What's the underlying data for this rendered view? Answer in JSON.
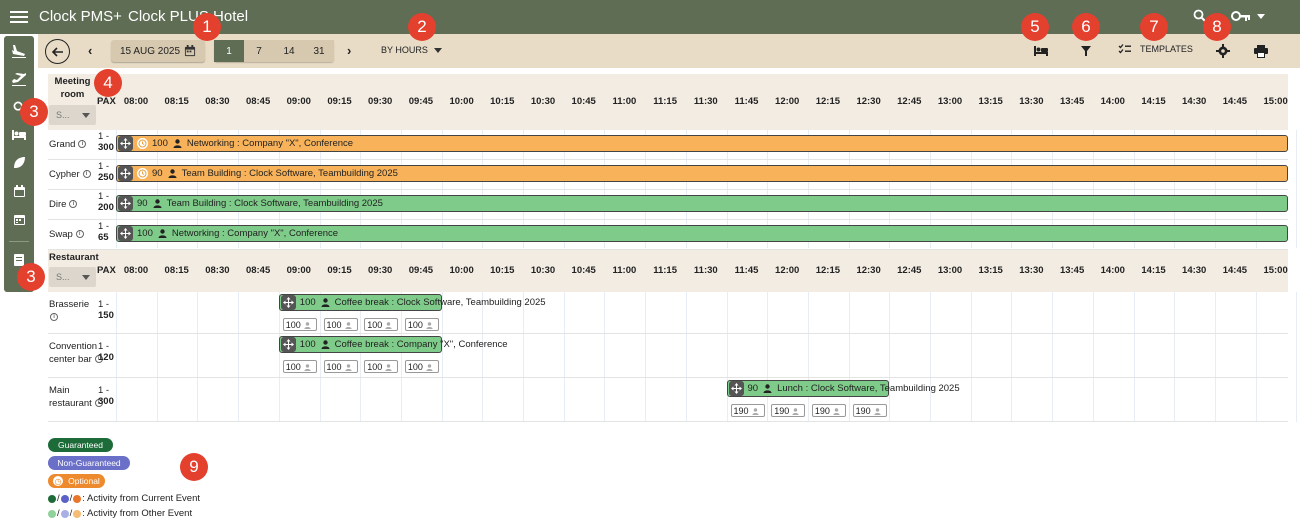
{
  "app": {
    "name": "Clock PMS+",
    "hotel": "Clock PLUS Hotel"
  },
  "toolbar": {
    "date": "15 AUG 2025",
    "ranges": [
      "1",
      "7",
      "14",
      "31"
    ],
    "active_range": "1",
    "mode": "BY HOURS",
    "templates_label": "TEMPLATES"
  },
  "badges": [
    "1",
    "2",
    "3",
    "4",
    "5",
    "6",
    "7",
    "8",
    "9",
    "3"
  ],
  "times": [
    "08:00",
    "08:15",
    "08:30",
    "08:45",
    "09:00",
    "09:15",
    "09:30",
    "09:45",
    "10:00",
    "10:15",
    "10:30",
    "10:45",
    "11:00",
    "11:15",
    "11:30",
    "11:45",
    "12:00",
    "12:15",
    "12:30",
    "12:45",
    "13:00",
    "13:15",
    "13:30",
    "13:45",
    "14:00",
    "14:15",
    "14:30",
    "14:45",
    "15:00"
  ],
  "groups": {
    "meeting": {
      "title_line1": "Meeting",
      "title_line2": "room",
      "pax": "PAX",
      "select_placeholder": "S...",
      "rooms": [
        {
          "name": "Grand",
          "cap_min": "1 -",
          "cap_max": "300",
          "event": {
            "pax": "100",
            "label": "Networking : Company \"X\", Conference",
            "color": "#f8b35a",
            "status": "Optional"
          }
        },
        {
          "name": "Cypher",
          "cap_min": "1 -",
          "cap_max": "250",
          "event": {
            "pax": "90",
            "label": "Team Building : Clock Software, Teambuilding 2025",
            "color": "#f8b35a",
            "status": "Optional"
          }
        },
        {
          "name": "Dire",
          "cap_min": "1 -",
          "cap_max": "200",
          "event": {
            "pax": "90",
            "label": "Team Building : Clock Software, Teambuilding 2025",
            "color": "#7fcc8a",
            "status": "Guaranteed"
          }
        },
        {
          "name": "Swap",
          "cap_min": "1 -",
          "cap_max": "65",
          "event": {
            "pax": "100",
            "label": "Networking : Company \"X\", Conference",
            "color": "#7fcc8a",
            "status": "Guaranteed"
          }
        }
      ]
    },
    "restaurant": {
      "title": "Restaurant",
      "pax": "PAX",
      "select_placeholder": "S...",
      "rooms": [
        {
          "name_line1": "Brasserie",
          "name_line2": "",
          "cap_min": "1 -",
          "cap_max": "150",
          "event": {
            "pax": "100",
            "label": "Coffee break : Clock Software, Teambuilding 2025",
            "start": "09:00",
            "end": "10:00"
          },
          "chips": [
            "100",
            "100",
            "100",
            "100"
          ]
        },
        {
          "name_line1": "Convention",
          "name_line2": "center bar",
          "cap_min": "1 -",
          "cap_max": "120",
          "event": {
            "pax": "100",
            "label": "Coffee break : Company \"X\", Conference",
            "start": "09:00",
            "end": "10:00"
          },
          "chips": [
            "100",
            "100",
            "100",
            "100"
          ]
        },
        {
          "name_line1": "Main",
          "name_line2": "restaurant",
          "cap_min": "1 -",
          "cap_max": "300",
          "event": {
            "pax": "90",
            "label": "Lunch : Clock Software, Teambuilding 2025",
            "start": "11:45",
            "end": "12:45"
          },
          "chips": [
            "190",
            "190",
            "190",
            "190"
          ]
        }
      ]
    }
  },
  "legend": {
    "guaranteed": "Guaranteed",
    "non_guaranteed": "Non-Guaranteed",
    "optional": "Optional",
    "current_event": ": Activity from Current Event",
    "other_event": ": Activity from Other Event",
    "colors": {
      "guaranteed": "#1e6b3a",
      "non_guaranteed": "#6a6fc7",
      "optional": "#ee8a2e",
      "current": [
        "#1e6b3a",
        "#5b61c6",
        "#e8762b"
      ],
      "other": [
        "#8fd29a",
        "#a9aee5",
        "#f6bd77"
      ]
    }
  }
}
